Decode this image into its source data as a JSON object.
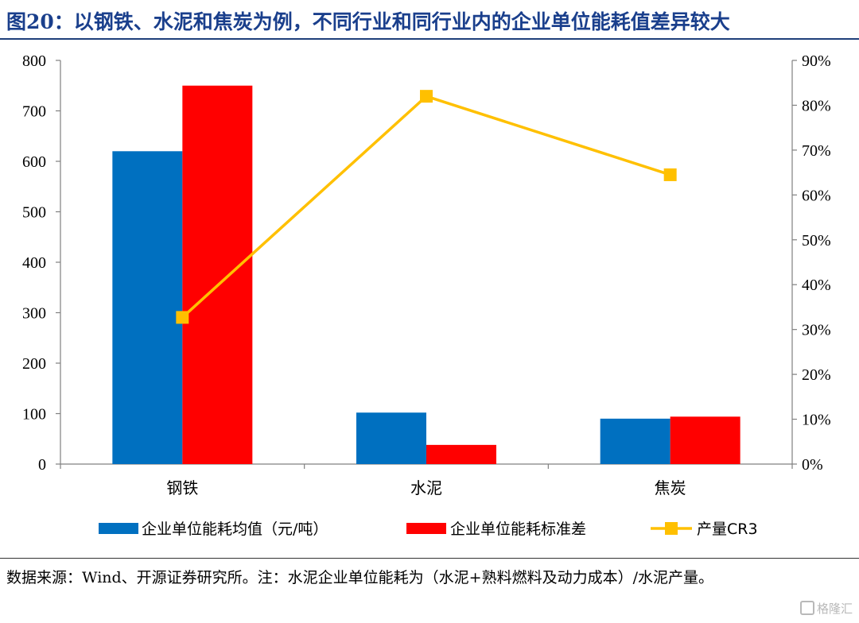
{
  "title": "图20：以钢铁、水泥和焦炭为例，不同行业和同行业内的企业单位能耗值差异较大",
  "source_note": "数据来源：Wind、开源证券研究所。注：水泥企业单位能耗为（水泥+熟料燃料及动力成本）/水泥产量。",
  "watermark": "格隆汇",
  "colors": {
    "mean": "#0070c0",
    "std": "#ff0000",
    "cr3": "#ffc000",
    "title": "#1a3f8c"
  },
  "chart_data": {
    "type": "bar",
    "categories": [
      "钢铁",
      "水泥",
      "焦炭"
    ],
    "series": [
      {
        "name": "企业单位能耗均值（元/吨）",
        "type": "bar",
        "axis": "left",
        "values": [
          620,
          102,
          90
        ]
      },
      {
        "name": "企业单位能耗标准差",
        "type": "bar",
        "axis": "left",
        "values": [
          750,
          38,
          94
        ]
      },
      {
        "name": "产量CR3",
        "type": "line",
        "axis": "right",
        "marker": "square",
        "values": [
          0.327,
          0.82,
          0.645
        ]
      }
    ],
    "left_axis": {
      "min": 0,
      "max": 800,
      "ticks": [
        "0",
        "100",
        "200",
        "300",
        "400",
        "500",
        "600",
        "700",
        "800"
      ]
    },
    "right_axis": {
      "min": 0,
      "max": 0.9,
      "ticks": [
        "0%",
        "10%",
        "20%",
        "30%",
        "40%",
        "50%",
        "60%",
        "70%",
        "80%",
        "90%"
      ]
    },
    "grid": false,
    "legend_position": "bottom"
  }
}
